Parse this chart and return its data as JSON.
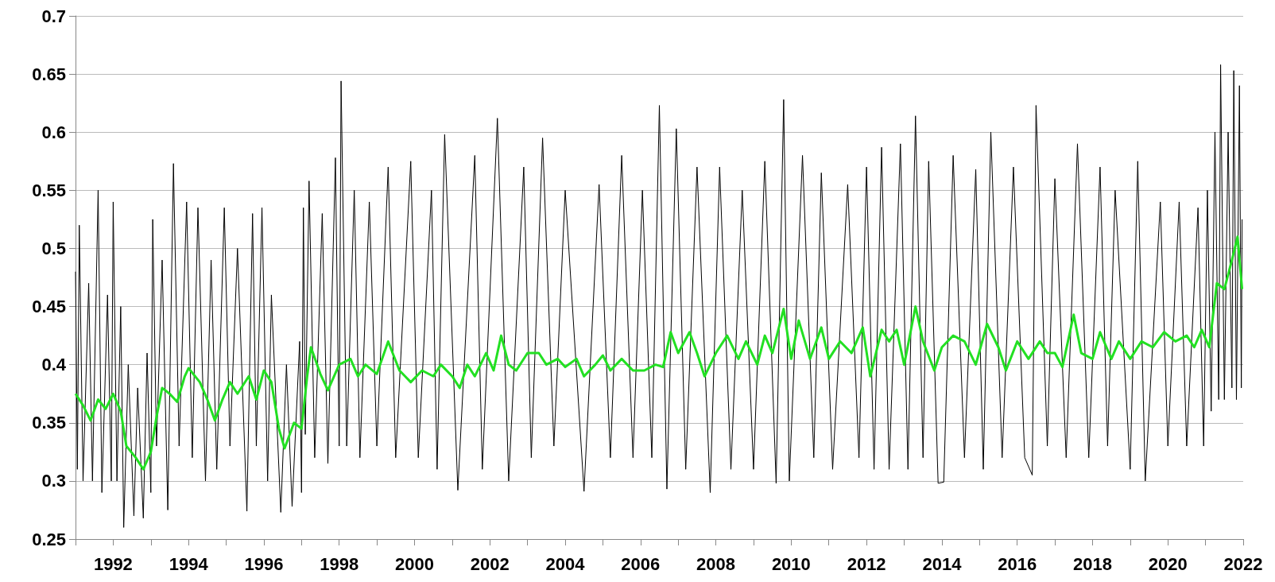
{
  "chart_data": {
    "type": "line",
    "xlim": [
      1991,
      2022
    ],
    "ylim": [
      0.25,
      0.7
    ],
    "yticks": [
      0.25,
      0.3,
      0.35,
      0.4,
      0.45,
      0.5,
      0.55,
      0.6,
      0.65,
      0.7
    ],
    "xticks": [
      {
        "value": 1991,
        "label": null
      },
      1992,
      {
        "value": 1993,
        "label": null
      },
      1994,
      {
        "value": 1995,
        "label": null
      },
      1996,
      {
        "value": 1997,
        "label": null
      },
      1998,
      {
        "value": 1999,
        "label": null
      },
      2000,
      {
        "value": 2001,
        "label": null
      },
      2002,
      {
        "value": 2003,
        "label": null
      },
      2004,
      {
        "value": 2005,
        "label": null
      },
      2006,
      {
        "value": 2007,
        "label": null
      },
      2008,
      {
        "value": 2009,
        "label": null
      },
      2010,
      {
        "value": 2011,
        "label": null
      },
      2012,
      {
        "value": 2013,
        "label": null
      },
      2014,
      {
        "value": 2015,
        "label": null
      },
      2016,
      {
        "value": 2017,
        "label": null
      },
      2018,
      {
        "value": 2019,
        "label": null
      },
      2020,
      {
        "value": 2021,
        "label": null
      },
      2022
    ],
    "grid": "y",
    "marker": "none",
    "line_style": "solid",
    "series": [
      {
        "color": "#000000",
        "x": [
          1991.0,
          1991.05,
          1991.1,
          1991.2,
          1991.35,
          1991.45,
          1991.6,
          1991.7,
          1991.85,
          1991.95,
          1992.0,
          1992.1,
          1992.2,
          1992.28,
          1992.4,
          1992.55,
          1992.65,
          1992.8,
          1992.9,
          1993.0,
          1993.05,
          1993.15,
          1993.3,
          1993.45,
          1993.6,
          1993.75,
          1993.95,
          1994.1,
          1994.25,
          1994.45,
          1994.6,
          1994.75,
          1994.95,
          1995.1,
          1995.3,
          1995.55,
          1995.7,
          1995.8,
          1995.95,
          1996.1,
          1996.2,
          1996.45,
          1996.6,
          1996.75,
          1996.95,
          1997.0,
          1997.05,
          1997.1,
          1997.2,
          1997.35,
          1997.55,
          1997.7,
          1997.9,
          1998.0,
          1998.05,
          1998.2,
          1998.4,
          1998.55,
          1998.8,
          1999.0,
          1999.3,
          1999.5,
          1999.9,
          2000.1,
          2000.45,
          2000.6,
          2000.8,
          2001.15,
          2001.6,
          2001.8,
          2002.2,
          2002.5,
          2002.9,
          2003.1,
          2003.4,
          2003.7,
          2004.0,
          2004.5,
          2004.9,
          2005.2,
          2005.5,
          2005.8,
          2006.05,
          2006.3,
          2006.5,
          2006.7,
          2006.95,
          2007.2,
          2007.5,
          2007.85,
          2008.1,
          2008.4,
          2008.7,
          2009.0,
          2009.3,
          2009.6,
          2009.8,
          2009.95,
          2010.3,
          2010.6,
          2010.8,
          2011.1,
          2011.5,
          2011.8,
          2012.0,
          2012.2,
          2012.4,
          2012.6,
          2012.9,
          2013.1,
          2013.3,
          2013.5,
          2013.65,
          2013.9,
          2014.05,
          2014.3,
          2014.6,
          2014.9,
          2015.1,
          2015.3,
          2015.6,
          2015.9,
          2016.2,
          2016.4,
          2016.5,
          2016.8,
          2017.0,
          2017.3,
          2017.6,
          2017.9,
          2018.2,
          2018.4,
          2018.6,
          2019.0,
          2019.2,
          2019.4,
          2019.8,
          2020.0,
          2020.3,
          2020.5,
          2020.8,
          2020.95,
          2021.05,
          2021.15,
          2021.25,
          2021.35,
          2021.4,
          2021.5,
          2021.6,
          2021.7,
          2021.75,
          2021.82,
          2021.9,
          2021.95,
          2021.97
        ],
        "values": [
          0.48,
          0.31,
          0.52,
          0.3,
          0.47,
          0.3,
          0.55,
          0.29,
          0.46,
          0.3,
          0.54,
          0.3,
          0.45,
          0.26,
          0.4,
          0.27,
          0.38,
          0.268,
          0.41,
          0.29,
          0.525,
          0.33,
          0.49,
          0.275,
          0.573,
          0.33,
          0.54,
          0.32,
          0.535,
          0.3,
          0.49,
          0.31,
          0.535,
          0.33,
          0.5,
          0.274,
          0.53,
          0.33,
          0.535,
          0.3,
          0.46,
          0.273,
          0.4,
          0.278,
          0.42,
          0.29,
          0.535,
          0.34,
          0.558,
          0.32,
          0.53,
          0.315,
          0.578,
          0.33,
          0.644,
          0.33,
          0.55,
          0.32,
          0.54,
          0.33,
          0.57,
          0.32,
          0.575,
          0.32,
          0.55,
          0.31,
          0.598,
          0.292,
          0.58,
          0.31,
          0.612,
          0.3,
          0.57,
          0.32,
          0.595,
          0.33,
          0.55,
          0.291,
          0.555,
          0.32,
          0.58,
          0.32,
          0.55,
          0.32,
          0.623,
          0.293,
          0.603,
          0.31,
          0.57,
          0.29,
          0.57,
          0.31,
          0.55,
          0.31,
          0.575,
          0.298,
          0.628,
          0.3,
          0.58,
          0.32,
          0.565,
          0.31,
          0.555,
          0.32,
          0.57,
          0.31,
          0.587,
          0.31,
          0.59,
          0.31,
          0.614,
          0.32,
          0.575,
          0.298,
          0.299,
          0.58,
          0.32,
          0.568,
          0.31,
          0.6,
          0.32,
          0.57,
          0.32,
          0.305,
          0.623,
          0.33,
          0.56,
          0.32,
          0.59,
          0.32,
          0.57,
          0.33,
          0.55,
          0.31,
          0.575,
          0.3,
          0.54,
          0.33,
          0.54,
          0.33,
          0.535,
          0.33,
          0.55,
          0.36,
          0.6,
          0.37,
          0.658,
          0.37,
          0.6,
          0.38,
          0.653,
          0.37,
          0.64,
          0.38,
          0.525
        ]
      },
      {
        "color": "#22e022",
        "x": [
          1991.0,
          1991.2,
          1991.4,
          1991.6,
          1991.8,
          1992.0,
          1992.2,
          1992.35,
          1992.6,
          1992.8,
          1993.0,
          1993.15,
          1993.3,
          1993.5,
          1993.7,
          1993.9,
          1994.0,
          1994.3,
          1994.5,
          1994.7,
          1994.9,
          1995.1,
          1995.3,
          1995.6,
          1995.8,
          1996.0,
          1996.2,
          1996.4,
          1996.55,
          1996.8,
          1997.0,
          1997.15,
          1997.25,
          1997.5,
          1997.7,
          1998.0,
          1998.3,
          1998.5,
          1998.7,
          1999.0,
          1999.3,
          1999.6,
          1999.9,
          2000.2,
          2000.5,
          2000.7,
          2001.0,
          2001.2,
          2001.4,
          2001.6,
          2001.9,
          2002.1,
          2002.3,
          2002.5,
          2002.7,
          2003.0,
          2003.3,
          2003.5,
          2003.8,
          2004.0,
          2004.3,
          2004.5,
          2004.8,
          2005.0,
          2005.2,
          2005.5,
          2005.8,
          2006.1,
          2006.4,
          2006.6,
          2006.8,
          2007.0,
          2007.3,
          2007.5,
          2007.7,
          2008.0,
          2008.3,
          2008.6,
          2008.8,
          2009.1,
          2009.3,
          2009.5,
          2009.8,
          2010.0,
          2010.2,
          2010.5,
          2010.8,
          2011.0,
          2011.3,
          2011.6,
          2011.9,
          2012.1,
          2012.4,
          2012.6,
          2012.8,
          2013.0,
          2013.3,
          2013.5,
          2013.8,
          2014.0,
          2014.3,
          2014.6,
          2014.9,
          2015.2,
          2015.5,
          2015.7,
          2016.0,
          2016.3,
          2016.6,
          2016.8,
          2017.0,
          2017.2,
          2017.5,
          2017.7,
          2018.0,
          2018.2,
          2018.5,
          2018.7,
          2019.0,
          2019.3,
          2019.6,
          2019.9,
          2020.2,
          2020.5,
          2020.7,
          2020.9,
          2021.1,
          2021.3,
          2021.5,
          2021.7,
          2021.85,
          2021.97
        ],
        "values": [
          0.375,
          0.365,
          0.352,
          0.37,
          0.362,
          0.375,
          0.36,
          0.33,
          0.32,
          0.31,
          0.325,
          0.355,
          0.38,
          0.375,
          0.368,
          0.39,
          0.397,
          0.385,
          0.37,
          0.352,
          0.37,
          0.385,
          0.375,
          0.39,
          0.37,
          0.395,
          0.385,
          0.345,
          0.328,
          0.35,
          0.345,
          0.39,
          0.415,
          0.392,
          0.378,
          0.4,
          0.405,
          0.39,
          0.4,
          0.392,
          0.42,
          0.395,
          0.385,
          0.395,
          0.39,
          0.4,
          0.39,
          0.38,
          0.4,
          0.39,
          0.41,
          0.395,
          0.425,
          0.4,
          0.395,
          0.41,
          0.41,
          0.4,
          0.405,
          0.398,
          0.405,
          0.39,
          0.4,
          0.408,
          0.395,
          0.405,
          0.395,
          0.395,
          0.4,
          0.398,
          0.428,
          0.41,
          0.428,
          0.41,
          0.39,
          0.41,
          0.425,
          0.405,
          0.42,
          0.4,
          0.425,
          0.41,
          0.448,
          0.405,
          0.438,
          0.405,
          0.432,
          0.405,
          0.42,
          0.41,
          0.432,
          0.39,
          0.43,
          0.42,
          0.43,
          0.4,
          0.45,
          0.42,
          0.395,
          0.415,
          0.425,
          0.42,
          0.4,
          0.435,
          0.415,
          0.395,
          0.42,
          0.405,
          0.42,
          0.41,
          0.41,
          0.398,
          0.443,
          0.41,
          0.405,
          0.428,
          0.405,
          0.42,
          0.405,
          0.42,
          0.415,
          0.428,
          0.42,
          0.425,
          0.415,
          0.43,
          0.415,
          0.47,
          0.465,
          0.49,
          0.51,
          0.465
        ]
      }
    ]
  }
}
